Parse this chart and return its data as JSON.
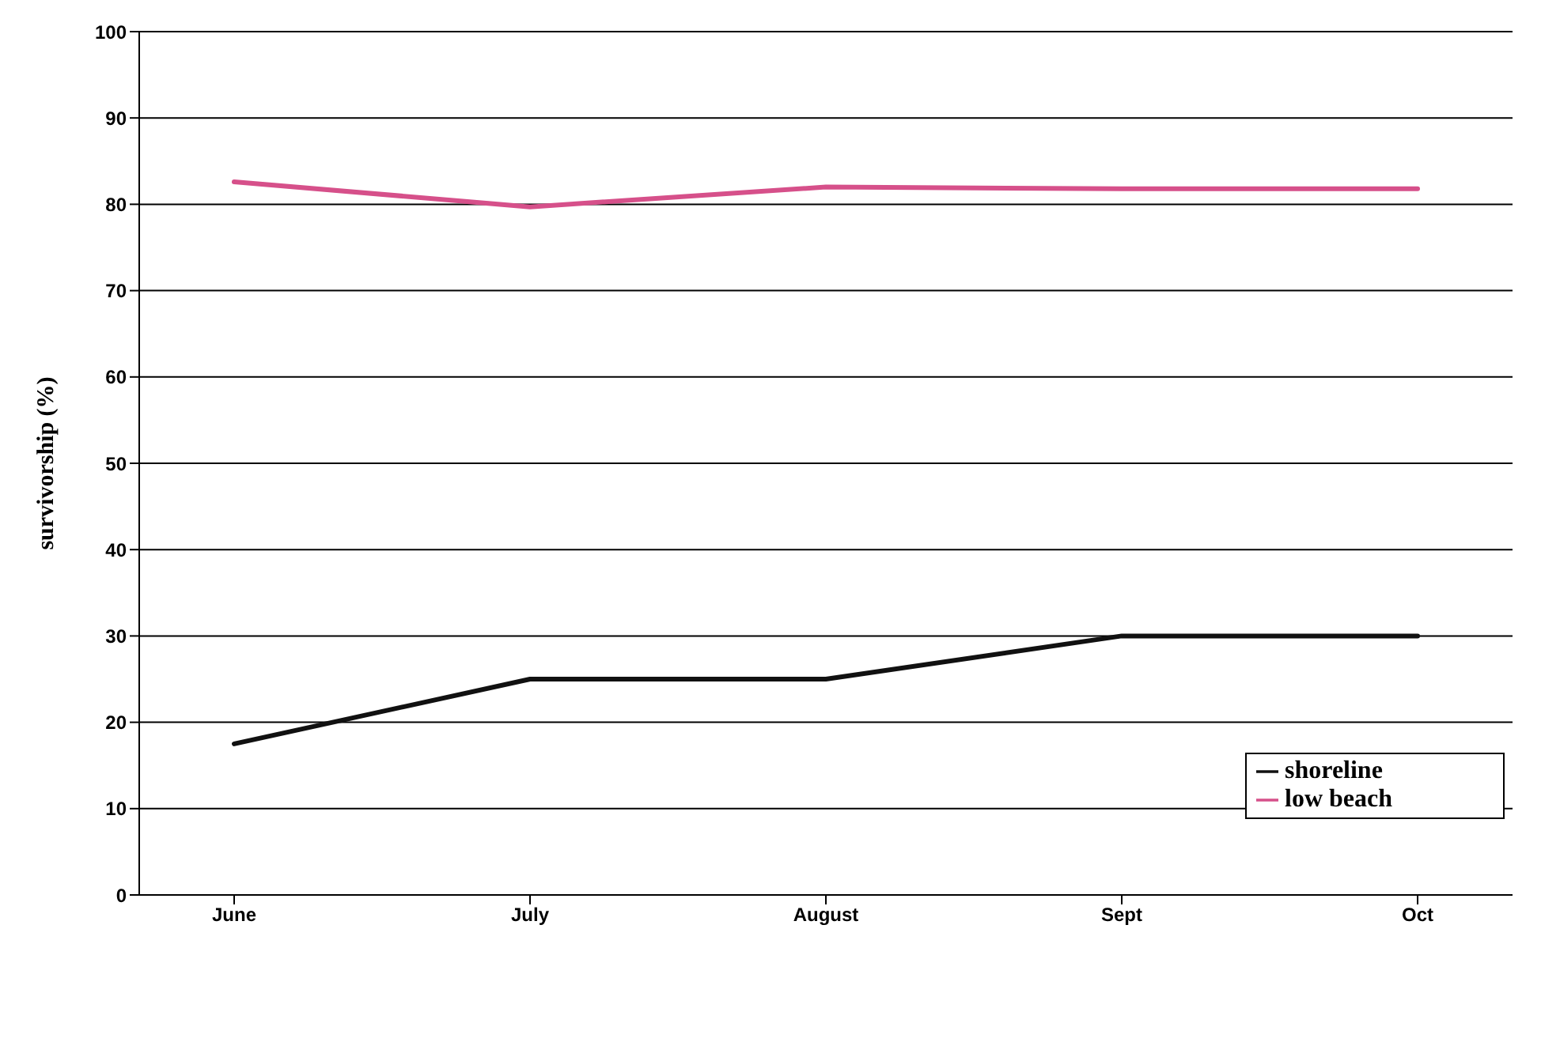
{
  "chart_data": {
    "type": "line",
    "ylabel": "survivorship (%)",
    "categories": [
      "June",
      "July",
      "August",
      "Sept",
      "Oct"
    ],
    "series": [
      {
        "name": "shoreline",
        "color": "#111111",
        "values": [
          17.5,
          25,
          25,
          30,
          30
        ]
      },
      {
        "name": "low beach",
        "color": "#d6508a",
        "values": [
          82.6,
          79.7,
          82,
          81.8,
          81.8
        ]
      }
    ],
    "ylim": [
      0,
      100
    ],
    "yticks": [
      0,
      10,
      20,
      30,
      40,
      50,
      60,
      70,
      80,
      90,
      100
    ],
    "grid": "y",
    "legend": "bottom right",
    "marker": "none",
    "line_style": "solid"
  }
}
